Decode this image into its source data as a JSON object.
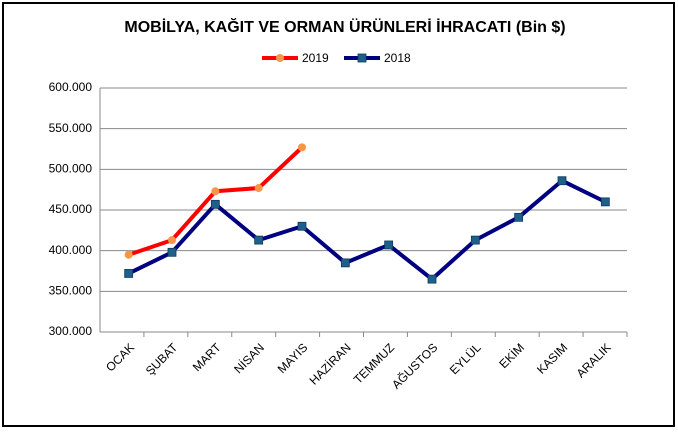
{
  "chart_data": {
    "type": "line",
    "title": "MOBİLYA, KAĞIT VE ORMAN ÜRÜNLERİ İHRACATI (Bin $)",
    "categories": [
      "OCAK",
      "ŞUBAT",
      "MART",
      "NİSAN",
      "MAYIS",
      "HAZİRAN",
      "TEMMUZ",
      "AĞUSTOS",
      "EYLÜL",
      "EKİM",
      "KASIM",
      "ARALIK"
    ],
    "series": [
      {
        "name": "2019",
        "color": "#ff0000",
        "marker_color": "#f79646",
        "marker": "circle",
        "values": [
          395000,
          413000,
          473000,
          477000,
          527000,
          null,
          null,
          null,
          null,
          null,
          null,
          null
        ]
      },
      {
        "name": "2018",
        "color": "#000080",
        "marker_color": "#1f5f8b",
        "marker": "square",
        "values": [
          372000,
          398000,
          457000,
          413000,
          430000,
          385000,
          407000,
          365000,
          413000,
          441000,
          486000,
          460000
        ]
      }
    ],
    "ylim": [
      300000,
      600000
    ],
    "yticks": [
      {
        "value": 300000,
        "label": "300.000"
      },
      {
        "value": 350000,
        "label": "350.000"
      },
      {
        "value": 400000,
        "label": "400.000"
      },
      {
        "value": 450000,
        "label": "450.000"
      },
      {
        "value": 500000,
        "label": "500.000"
      },
      {
        "value": 550000,
        "label": "550.000"
      },
      {
        "value": 600000,
        "label": "600.000"
      }
    ],
    "grid": true,
    "legend": "top"
  }
}
